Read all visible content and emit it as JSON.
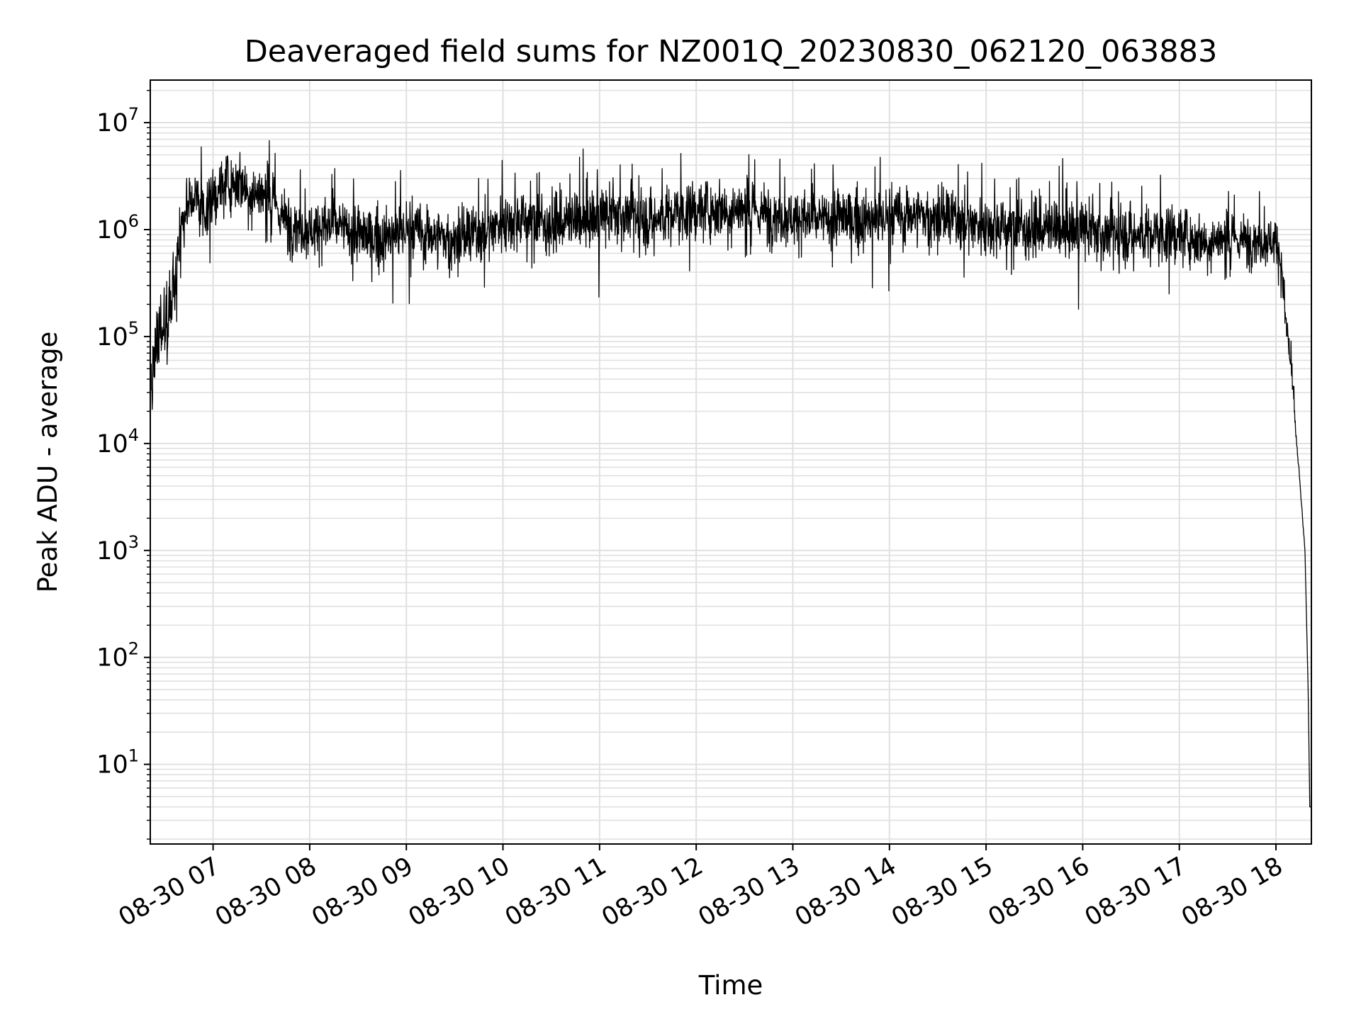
{
  "chart_data": {
    "type": "line",
    "title": "Deaveraged field sums for NZ001Q_20230830_062120_063883",
    "xlabel": "Time",
    "ylabel": "Peak ADU - average",
    "xlim": [
      "08-30 06:21",
      "08-30 18:22"
    ],
    "ylim": [
      1.8,
      25000000
    ],
    "yscale": "log",
    "grid": true,
    "line_color": "#000000",
    "x_ticks": [
      {
        "value": "08-30 07:00",
        "label": "08-30 07"
      },
      {
        "value": "08-30 08:00",
        "label": "08-30 08"
      },
      {
        "value": "08-30 09:00",
        "label": "08-30 09"
      },
      {
        "value": "08-30 10:00",
        "label": "08-30 10"
      },
      {
        "value": "08-30 11:00",
        "label": "08-30 11"
      },
      {
        "value": "08-30 12:00",
        "label": "08-30 12"
      },
      {
        "value": "08-30 13:00",
        "label": "08-30 13"
      },
      {
        "value": "08-30 14:00",
        "label": "08-30 14"
      },
      {
        "value": "08-30 15:00",
        "label": "08-30 15"
      },
      {
        "value": "08-30 16:00",
        "label": "08-30 16"
      },
      {
        "value": "08-30 17:00",
        "label": "08-30 17"
      },
      {
        "value": "08-30 18:00",
        "label": "08-30 18"
      }
    ],
    "y_ticks": [
      {
        "value": 10,
        "base": "10",
        "exp": "1"
      },
      {
        "value": 100,
        "base": "10",
        "exp": "2"
      },
      {
        "value": 1000,
        "base": "10",
        "exp": "3"
      },
      {
        "value": 10000,
        "base": "10",
        "exp": "4"
      },
      {
        "value": 100000,
        "base": "10",
        "exp": "5"
      },
      {
        "value": 1000000,
        "base": "10",
        "exp": "6"
      },
      {
        "value": 10000000,
        "base": "10",
        "exp": "7"
      }
    ],
    "series": [
      {
        "x": [
          "08-30 06:21",
          "08-30 06:24",
          "08-30 06:28",
          "08-30 06:32",
          "08-30 06:35",
          "08-30 06:38",
          "08-30 06:42",
          "08-30 06:48",
          "08-30 06:55",
          "08-30 07:05",
          "08-30 07:15",
          "08-30 07:25",
          "08-30 07:35",
          "08-30 07:45",
          "08-30 08:00",
          "08-30 08:15",
          "08-30 08:30",
          "08-30 08:45",
          "08-30 09:00",
          "08-30 09:15",
          "08-30 09:30",
          "08-30 09:45",
          "08-30 10:00",
          "08-30 10:15",
          "08-30 10:30",
          "08-30 10:45",
          "08-30 11:00",
          "08-30 11:15",
          "08-30 11:30",
          "08-30 11:45",
          "08-30 12:00",
          "08-30 12:15",
          "08-30 12:30",
          "08-30 12:45",
          "08-30 13:00",
          "08-30 13:15",
          "08-30 13:30",
          "08-30 13:45",
          "08-30 14:00",
          "08-30 14:15",
          "08-30 14:30",
          "08-30 14:45",
          "08-30 15:00",
          "08-30 15:15",
          "08-30 15:30",
          "08-30 15:45",
          "08-30 16:00",
          "08-30 16:15",
          "08-30 16:30",
          "08-30 16:45",
          "08-30 17:00",
          "08-30 17:15",
          "08-30 17:30",
          "08-30 17:45",
          "08-30 18:00",
          "08-30 18:03",
          "08-30 18:06",
          "08-30 18:09",
          "08-30 18:12",
          "08-30 18:15",
          "08-30 18:18",
          "08-30 18:20",
          "08-30 18:21",
          "08-30 18:22"
        ],
        "y": [
          30000,
          80000,
          120000,
          150000,
          250000,
          600000,
          1500000,
          2000000,
          1500000,
          2500000,
          3000000,
          2200000,
          2000000,
          1200000,
          1000000,
          1100000,
          900000,
          800000,
          1000000,
          900000,
          800000,
          900000,
          1200000,
          1300000,
          1100000,
          1200000,
          1300000,
          1400000,
          1200000,
          1400000,
          1500000,
          1600000,
          1500000,
          1400000,
          1300000,
          1200000,
          1300000,
          1200000,
          1300000,
          1400000,
          1300000,
          1200000,
          1100000,
          1100000,
          1000000,
          1000000,
          1000000,
          900000,
          900000,
          900000,
          900000,
          800000,
          800000,
          800000,
          800000,
          500000,
          150000,
          60000,
          15000,
          4000,
          1000,
          50,
          4,
          4
        ],
        "noise_dex": [
          0.4,
          0.5,
          0.5,
          0.5,
          0.4,
          0.3,
          0.35,
          0.35,
          0.35,
          0.35,
          0.35,
          0.35,
          0.35,
          0.35,
          0.35,
          0.35,
          0.35,
          0.35,
          0.35,
          0.35,
          0.35,
          0.35,
          0.35,
          0.35,
          0.35,
          0.35,
          0.35,
          0.35,
          0.35,
          0.35,
          0.35,
          0.35,
          0.35,
          0.35,
          0.35,
          0.35,
          0.35,
          0.35,
          0.35,
          0.35,
          0.35,
          0.35,
          0.35,
          0.35,
          0.35,
          0.35,
          0.35,
          0.35,
          0.35,
          0.35,
          0.35,
          0.3,
          0.3,
          0.3,
          0.3,
          0.3,
          0.25,
          0.2,
          0.1,
          0.05,
          0.02,
          0,
          0,
          0
        ]
      }
    ]
  }
}
